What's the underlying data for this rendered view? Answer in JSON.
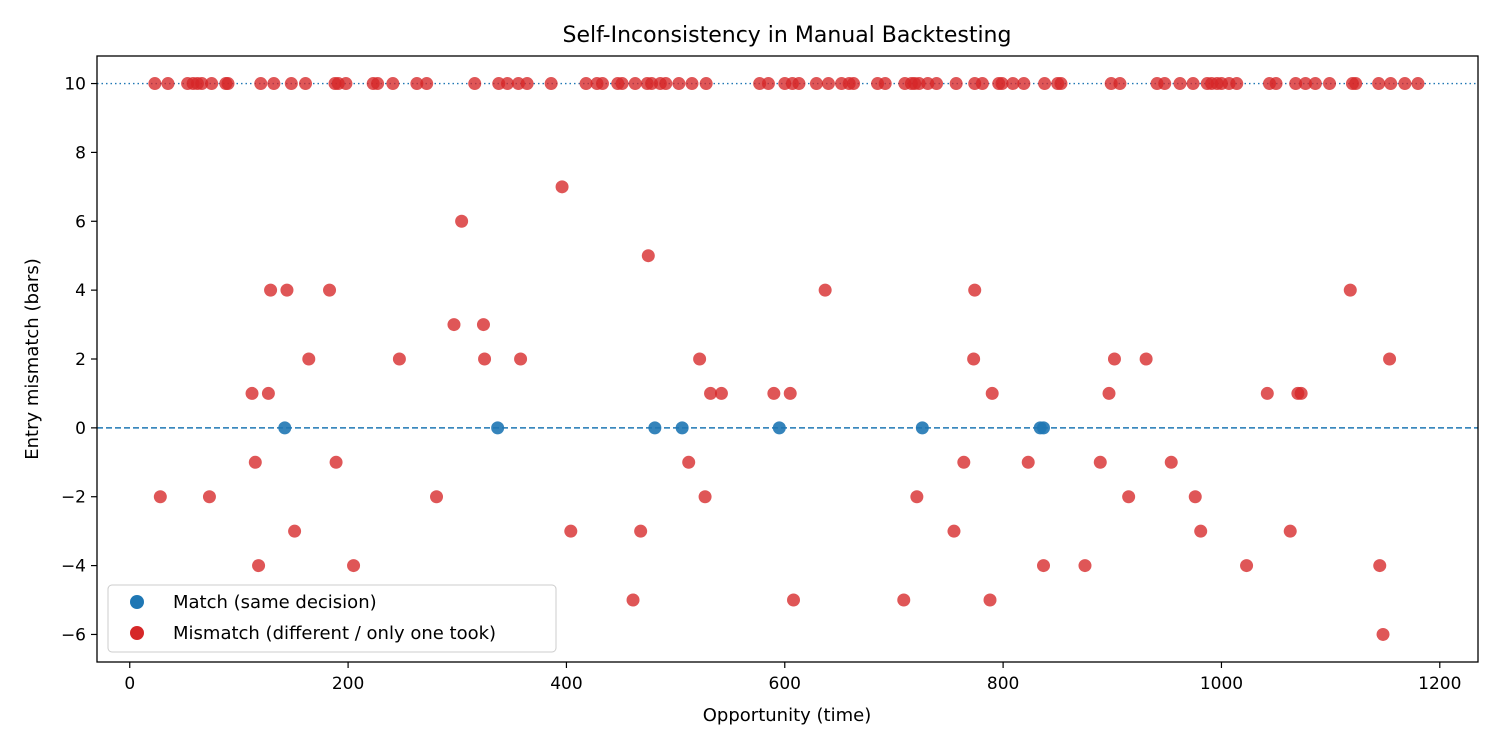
{
  "chart_data": {
    "type": "scatter",
    "title": "Self-Inconsistency in Manual Backtesting",
    "xlabel": "Opportunity (time)",
    "ylabel": "Entry mismatch (bars)",
    "xlim": [
      -30,
      1235
    ],
    "ylim": [
      -6.8,
      10.8
    ],
    "xticks": [
      0,
      200,
      400,
      600,
      800,
      1000,
      1200
    ],
    "xtick_labels": [
      "0",
      "200",
      "400",
      "600",
      "800",
      "1000",
      "1200"
    ],
    "yticks": [
      -6,
      -4,
      -2,
      0,
      2,
      4,
      6,
      8,
      10
    ],
    "ytick_labels": [
      "−6",
      "−4",
      "−2",
      "0",
      "2",
      "4",
      "6",
      "8",
      "10"
    ],
    "grid": false,
    "legend_position": "lower-left",
    "reference_lines": [
      {
        "y": 10,
        "style": "dotted",
        "color": "#1f77b4"
      },
      {
        "y": 0,
        "style": "dashed",
        "color": "#1f77b4"
      }
    ],
    "series": [
      {
        "name": "Match (same decision)",
        "color": "#1f77b4",
        "points": [
          [
            142,
            0
          ],
          [
            337,
            0
          ],
          [
            481,
            0
          ],
          [
            506,
            0
          ],
          [
            595,
            0
          ],
          [
            726,
            0
          ],
          [
            834,
            0
          ],
          [
            837,
            0
          ]
        ]
      },
      {
        "name": "Mismatch (different / only one took)",
        "color": "#d62728",
        "points": [
          [
            23,
            10
          ],
          [
            35,
            10
          ],
          [
            53,
            10
          ],
          [
            58,
            10
          ],
          [
            62,
            10
          ],
          [
            66,
            10
          ],
          [
            75,
            10
          ],
          [
            88,
            10
          ],
          [
            90,
            10
          ],
          [
            120,
            10
          ],
          [
            132,
            10
          ],
          [
            148,
            10
          ],
          [
            161,
            10
          ],
          [
            188,
            10
          ],
          [
            191,
            10
          ],
          [
            198,
            10
          ],
          [
            223,
            10
          ],
          [
            227,
            10
          ],
          [
            241,
            10
          ],
          [
            263,
            10
          ],
          [
            272,
            10
          ],
          [
            316,
            10
          ],
          [
            338,
            10
          ],
          [
            346,
            10
          ],
          [
            356,
            10
          ],
          [
            364,
            10
          ],
          [
            386,
            10
          ],
          [
            418,
            10
          ],
          [
            428,
            10
          ],
          [
            433,
            10
          ],
          [
            447,
            10
          ],
          [
            451,
            10
          ],
          [
            463,
            10
          ],
          [
            474,
            10
          ],
          [
            478,
            10
          ],
          [
            486,
            10
          ],
          [
            491,
            10
          ],
          [
            503,
            10
          ],
          [
            515,
            10
          ],
          [
            528,
            10
          ],
          [
            577,
            10
          ],
          [
            585,
            10
          ],
          [
            600,
            10
          ],
          [
            607,
            10
          ],
          [
            613,
            10
          ],
          [
            629,
            10
          ],
          [
            640,
            10
          ],
          [
            652,
            10
          ],
          [
            659,
            10
          ],
          [
            663,
            10
          ],
          [
            685,
            10
          ],
          [
            692,
            10
          ],
          [
            710,
            10
          ],
          [
            716,
            10
          ],
          [
            719,
            10
          ],
          [
            723,
            10
          ],
          [
            731,
            10
          ],
          [
            739,
            10
          ],
          [
            757,
            10
          ],
          [
            774,
            10
          ],
          [
            781,
            10
          ],
          [
            796,
            10
          ],
          [
            799,
            10
          ],
          [
            809,
            10
          ],
          [
            819,
            10
          ],
          [
            838,
            10
          ],
          [
            850,
            10
          ],
          [
            853,
            10
          ],
          [
            899,
            10
          ],
          [
            907,
            10
          ],
          [
            941,
            10
          ],
          [
            948,
            10
          ],
          [
            962,
            10
          ],
          [
            974,
            10
          ],
          [
            987,
            10
          ],
          [
            991,
            10
          ],
          [
            996,
            10
          ],
          [
            1000,
            10
          ],
          [
            1007,
            10
          ],
          [
            1014,
            10
          ],
          [
            1044,
            10
          ],
          [
            1050,
            10
          ],
          [
            1068,
            10
          ],
          [
            1077,
            10
          ],
          [
            1086,
            10
          ],
          [
            1099,
            10
          ],
          [
            1120,
            10
          ],
          [
            1123,
            10
          ],
          [
            1144,
            10
          ],
          [
            1155,
            10
          ],
          [
            1168,
            10
          ],
          [
            1180,
            10
          ],
          [
            28,
            -2
          ],
          [
            73,
            -2
          ],
          [
            112,
            1
          ],
          [
            115,
            -1
          ],
          [
            118,
            -4
          ],
          [
            127,
            1
          ],
          [
            129,
            4
          ],
          [
            144,
            4
          ],
          [
            151,
            -3
          ],
          [
            164,
            2
          ],
          [
            183,
            4
          ],
          [
            189,
            -1
          ],
          [
            205,
            -4
          ],
          [
            247,
            2
          ],
          [
            281,
            -2
          ],
          [
            297,
            3
          ],
          [
            304,
            6
          ],
          [
            324,
            3
          ],
          [
            325,
            2
          ],
          [
            358,
            2
          ],
          [
            396,
            7
          ],
          [
            404,
            -3
          ],
          [
            461,
            -5
          ],
          [
            468,
            -3
          ],
          [
            475,
            5
          ],
          [
            512,
            -1
          ],
          [
            522,
            2
          ],
          [
            527,
            -2
          ],
          [
            532,
            1
          ],
          [
            542,
            1
          ],
          [
            590,
            1
          ],
          [
            605,
            1
          ],
          [
            608,
            -5
          ],
          [
            637,
            4
          ],
          [
            709,
            -5
          ],
          [
            721,
            -2
          ],
          [
            755,
            -3
          ],
          [
            764,
            -1
          ],
          [
            773,
            2
          ],
          [
            774,
            4
          ],
          [
            788,
            -5
          ],
          [
            790,
            1
          ],
          [
            823,
            -1
          ],
          [
            837,
            -4
          ],
          [
            875,
            -4
          ],
          [
            889,
            -1
          ],
          [
            897,
            1
          ],
          [
            902,
            2
          ],
          [
            915,
            -2
          ],
          [
            931,
            2
          ],
          [
            954,
            -1
          ],
          [
            976,
            -2
          ],
          [
            981,
            -3
          ],
          [
            1023,
            -4
          ],
          [
            1042,
            1
          ],
          [
            1063,
            -3
          ],
          [
            1070,
            1
          ],
          [
            1073,
            1
          ],
          [
            1118,
            4
          ],
          [
            1145,
            -4
          ],
          [
            1148,
            -6
          ],
          [
            1154,
            2
          ]
        ]
      }
    ]
  }
}
